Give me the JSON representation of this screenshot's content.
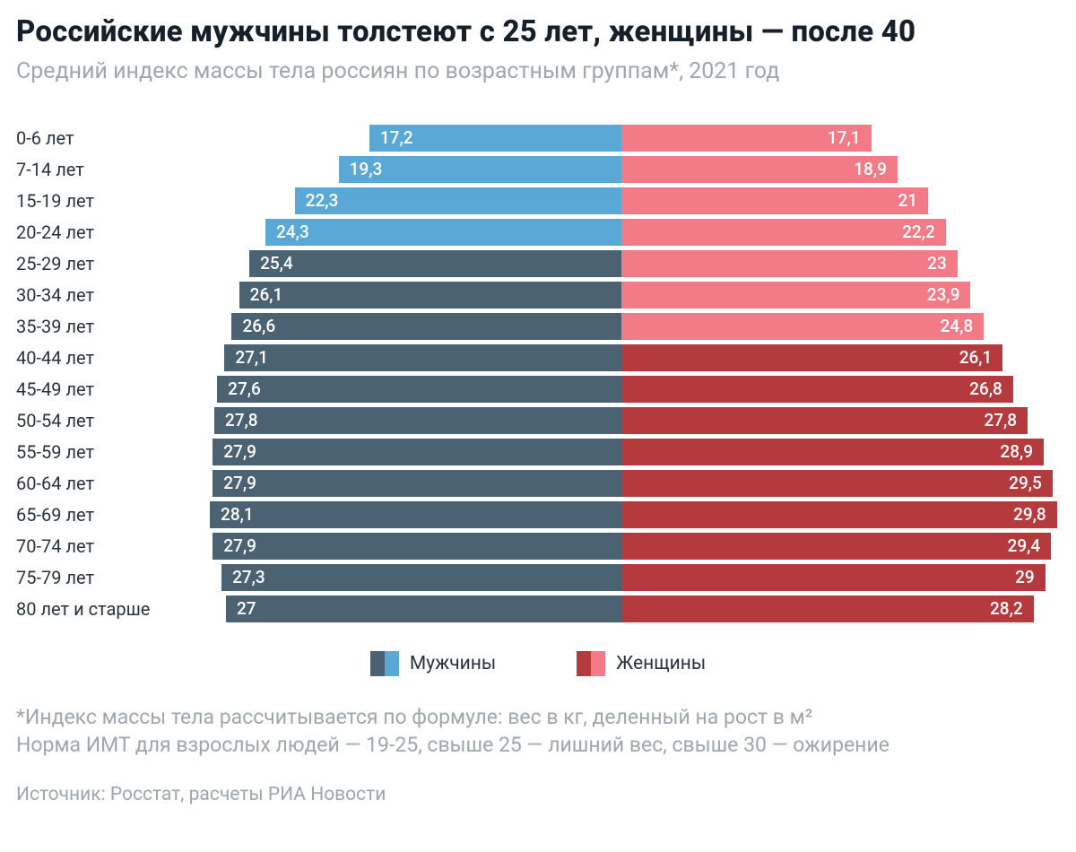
{
  "title": "Российские мужчины толстеют с 25 лет, женщины — после 40",
  "subtitle": "Средний индекс массы тела россиян по возрастным группам*, 2021 год",
  "legend": {
    "men": "Мужчины",
    "women": "Женщины"
  },
  "footnote_line1": "*Индекс массы тела рассчитывается по формуле: вес в кг, деленный на рост в м²",
  "footnote_line2": "Норма ИМТ для взрослых людей — 19-25, свыше 25 — лишний вес, свыше 30 — ожирение",
  "source": "Источник: Росстат, расчеты РИА Новости",
  "chart": {
    "type": "diverging-bar",
    "value_max": 30,
    "bar_label_fontsize": 19,
    "axis_label_fontsize": 20,
    "background_color": "#ffffff",
    "colors": {
      "men_light": "#5aa8d6",
      "men_dark": "#4a6272",
      "women_light": "#f37a87",
      "women_dark": "#b43a3d",
      "men_threshold": 25,
      "women_threshold": 25
    },
    "rows": [
      {
        "label": "0-6 лет",
        "men": 17.2,
        "men_disp": "17,2",
        "women": 17.1,
        "women_disp": "17,1"
      },
      {
        "label": "7-14 лет",
        "men": 19.3,
        "men_disp": "19,3",
        "women": 18.9,
        "women_disp": "18,9"
      },
      {
        "label": "15-19 лет",
        "men": 22.3,
        "men_disp": "22,3",
        "women": 21.0,
        "women_disp": "21"
      },
      {
        "label": "20-24 лет",
        "men": 24.3,
        "men_disp": "24,3",
        "women": 22.2,
        "women_disp": "22,2"
      },
      {
        "label": "25-29 лет",
        "men": 25.4,
        "men_disp": "25,4",
        "women": 23.0,
        "women_disp": "23"
      },
      {
        "label": "30-34 лет",
        "men": 26.1,
        "men_disp": "26,1",
        "women": 23.9,
        "women_disp": "23,9"
      },
      {
        "label": "35-39 лет",
        "men": 26.6,
        "men_disp": "26,6",
        "women": 24.8,
        "women_disp": "24,8"
      },
      {
        "label": "40-44 лет",
        "men": 27.1,
        "men_disp": "27,1",
        "women": 26.1,
        "women_disp": "26,1"
      },
      {
        "label": "45-49 лет",
        "men": 27.6,
        "men_disp": "27,6",
        "women": 26.8,
        "women_disp": "26,8"
      },
      {
        "label": "50-54 лет",
        "men": 27.8,
        "men_disp": "27,8",
        "women": 27.8,
        "women_disp": "27,8"
      },
      {
        "label": "55-59 лет",
        "men": 27.9,
        "men_disp": "27,9",
        "women": 28.9,
        "women_disp": "28,9"
      },
      {
        "label": "60-64 лет",
        "men": 27.9,
        "men_disp": "27,9",
        "women": 29.5,
        "women_disp": "29,5"
      },
      {
        "label": "65-69 лет",
        "men": 28.1,
        "men_disp": "28,1",
        "women": 29.8,
        "women_disp": "29,8"
      },
      {
        "label": "70-74 лет",
        "men": 27.9,
        "men_disp": "27,9",
        "women": 29.4,
        "women_disp": "29,4"
      },
      {
        "label": "75-79 лет",
        "men": 27.3,
        "men_disp": "27,3",
        "women": 29.0,
        "women_disp": "29"
      },
      {
        "label": "80 лет и старше",
        "men": 27.0,
        "men_disp": "27",
        "women": 28.2,
        "women_disp": "28,2"
      }
    ]
  }
}
